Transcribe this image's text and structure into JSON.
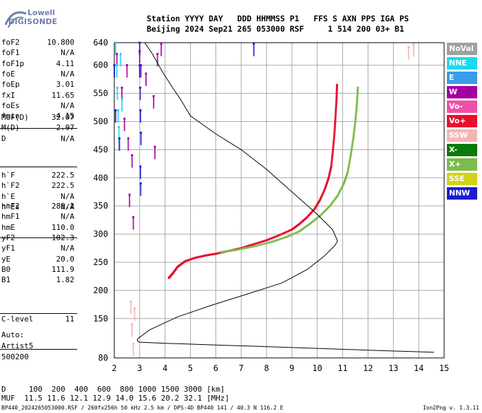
{
  "logo": {
    "line1": "Lowell",
    "line2": "DIGISONDE"
  },
  "header": {
    "line1": "Station YYYY DAY   DDD HHMMSS P1   FFS S AXN PPS IGA PS",
    "line2": "Beijing 2024 Sep21 265 053000 RSF     1 514 200 03+ B1"
  },
  "params_group1": [
    {
      "name": "foF2",
      "value": "10.800"
    },
    {
      "name": "foF1",
      "value": "N/A"
    },
    {
      "name": "foF1p",
      "value": "4.11"
    },
    {
      "name": "foE",
      "value": "N/A"
    },
    {
      "name": "foEp",
      "value": "3.01"
    },
    {
      "name": "fxI",
      "value": "11.65"
    },
    {
      "name": "foEs",
      "value": "N/A"
    },
    {
      "name": "fmin",
      "value": "4.15"
    }
  ],
  "params_group2": [
    {
      "name": "MUF(D)",
      "value": "32.07"
    },
    {
      "name": "M(D)",
      "value": "2.97"
    },
    {
      "name": "D",
      "value": "N/A"
    }
  ],
  "params_group3": [
    {
      "name": "h`F",
      "value": "222.5"
    },
    {
      "name": "h`F2",
      "value": "222.5"
    },
    {
      "name": "h`E",
      "value": "N/A"
    },
    {
      "name": "h`Es",
      "value": "N/A"
    }
  ],
  "params_group4": [
    {
      "name": "hmF2",
      "value": "288.2"
    },
    {
      "name": "hmF1",
      "value": "N/A"
    },
    {
      "name": "hmE",
      "value": "110.0"
    },
    {
      "name": "yF2",
      "value": "102.3"
    },
    {
      "name": "yF1",
      "value": "N/A"
    },
    {
      "name": "yE",
      "value": "20.0"
    },
    {
      "name": "B0",
      "value": "111.9"
    },
    {
      "name": "B1",
      "value": "1.82"
    }
  ],
  "params_group5": [
    {
      "name": "C-level",
      "value": "11"
    }
  ],
  "auto": {
    "line1": "Auto:",
    "line2": "Artist5",
    "line3": "500200"
  },
  "legend": [
    {
      "label": "NoVal",
      "color": "#a0a0a0"
    },
    {
      "label": "NNE",
      "color": "#19d9f0"
    },
    {
      "label": "E",
      "color": "#3a9be8"
    },
    {
      "label": "W",
      "color": "#a300a3"
    },
    {
      "label": "Vo-",
      "color": "#f04fa7"
    },
    {
      "label": "Vo+",
      "color": "#e8102e"
    },
    {
      "label": "SSW",
      "color": "#f5b4b4"
    },
    {
      "label": "X-",
      "color": "#0a7a0a"
    },
    {
      "label": "X+",
      "color": "#7dbb4c"
    },
    {
      "label": "SSE",
      "color": "#d2d21a"
    },
    {
      "label": "NNW",
      "color": "#1c1cd0"
    }
  ],
  "muf_table": {
    "d_line": "D     100  200  400  600  800 1000 1500 3000 [km]",
    "m_line": "MUF  11.5 11.6 12.1 12.9 14.0 15.6 20.2 32.1 [MHz]"
  },
  "footer": {
    "left": "BP440_2024265053000.RSF / 260fx256h 50 kHz 2.5 km / DPS-4D BP440 141 / 40.3 N 116.2 E",
    "right": "Ion2Png v. 1.3.11"
  },
  "chart_data": {
    "type": "scatter",
    "xlim": [
      2,
      15
    ],
    "ylim": [
      80,
      640
    ],
    "x_ticks": [
      2,
      3,
      4,
      5,
      6,
      7,
      8,
      9,
      10,
      11,
      12,
      13,
      14,
      15
    ],
    "y_ticks": [
      80,
      150,
      200,
      250,
      300,
      350,
      400,
      450,
      500,
      550,
      600,
      640
    ],
    "grid": true,
    "series": [
      {
        "name": "Vo+",
        "color": "#e8102e",
        "points": [
          [
            4.15,
            222
          ],
          [
            4.3,
            230
          ],
          [
            4.5,
            242
          ],
          [
            4.8,
            252
          ],
          [
            5.2,
            258
          ],
          [
            5.6,
            262
          ],
          [
            6.0,
            265
          ],
          [
            6.5,
            270
          ],
          [
            7.0,
            275
          ],
          [
            7.5,
            282
          ],
          [
            8.0,
            289
          ],
          [
            8.5,
            298
          ],
          [
            9.0,
            308
          ],
          [
            9.3,
            318
          ],
          [
            9.6,
            330
          ],
          [
            9.9,
            345
          ],
          [
            10.1,
            360
          ],
          [
            10.3,
            380
          ],
          [
            10.45,
            400
          ],
          [
            10.55,
            420
          ],
          [
            10.62,
            450
          ],
          [
            10.68,
            480
          ],
          [
            10.72,
            510
          ],
          [
            10.76,
            540
          ],
          [
            10.78,
            565
          ]
        ]
      },
      {
        "name": "X+",
        "color": "#7dbb4c",
        "points": [
          [
            6.2,
            268
          ],
          [
            6.8,
            272
          ],
          [
            7.5,
            278
          ],
          [
            8.2,
            286
          ],
          [
            8.8,
            295
          ],
          [
            9.3,
            305
          ],
          [
            9.7,
            318
          ],
          [
            10.1,
            332
          ],
          [
            10.5,
            350
          ],
          [
            10.8,
            368
          ],
          [
            11.05,
            390
          ],
          [
            11.2,
            410
          ],
          [
            11.32,
            440
          ],
          [
            11.42,
            470
          ],
          [
            11.5,
            500
          ],
          [
            11.56,
            530
          ],
          [
            11.6,
            560
          ]
        ]
      },
      {
        "name": "W",
        "color": "#a300a3",
        "points": [
          [
            2.1,
            620
          ],
          [
            2.3,
            560
          ],
          [
            2.4,
            505
          ],
          [
            2.55,
            470
          ],
          [
            2.7,
            440
          ],
          [
            2.6,
            370
          ],
          [
            2.75,
            330
          ],
          [
            2.5,
            600
          ],
          [
            3.0,
            625
          ],
          [
            3.05,
            600
          ],
          [
            3.25,
            585
          ],
          [
            3.55,
            545
          ],
          [
            3.6,
            455
          ],
          [
            3.7,
            620
          ],
          [
            3.85,
            638
          ]
        ]
      },
      {
        "name": "NNE",
        "color": "#19d9f0",
        "points": [
          [
            2.05,
            640
          ],
          [
            2.1,
            600
          ],
          [
            2.12,
            560
          ],
          [
            2.15,
            520
          ],
          [
            2.18,
            490
          ],
          [
            2.2,
            470
          ],
          [
            2.25,
            620
          ],
          [
            2.3,
            540
          ]
        ]
      },
      {
        "name": "NNW",
        "color": "#1c1cd0",
        "points": [
          [
            2.0,
            600
          ],
          [
            2.05,
            520
          ],
          [
            3.0,
            640
          ],
          [
            3.0,
            600
          ],
          [
            3.02,
            560
          ],
          [
            3.03,
            520
          ],
          [
            3.05,
            480
          ],
          [
            3.03,
            420
          ],
          [
            3.04,
            390
          ],
          [
            2.2,
            470
          ],
          [
            7.5,
            638
          ]
        ]
      },
      {
        "name": "SSW",
        "color": "#f5b4b4",
        "points": [
          [
            2.65,
            180
          ],
          [
            2.7,
            140
          ],
          [
            2.75,
            105
          ],
          [
            2.8,
            168
          ],
          [
            13.6,
            632
          ],
          [
            13.8,
            637
          ]
        ]
      }
    ],
    "profile": [
      [
        14.6,
        90
      ],
      [
        12.5,
        93
      ],
      [
        10.0,
        97
      ],
      [
        8.0,
        100
      ],
      [
        6.0,
        103
      ],
      [
        4.0,
        106
      ],
      [
        3.0,
        108
      ],
      [
        2.95,
        109
      ],
      [
        2.9,
        112
      ],
      [
        2.95,
        115
      ],
      [
        3.4,
        130
      ],
      [
        4.5,
        153
      ],
      [
        5.8,
        173
      ],
      [
        7.2,
        193
      ],
      [
        8.6,
        213
      ],
      [
        9.6,
        237
      ],
      [
        10.25,
        260
      ],
      [
        10.7,
        280
      ],
      [
        10.8,
        288
      ],
      [
        10.6,
        308
      ],
      [
        10.0,
        335
      ],
      [
        9.0,
        375
      ],
      [
        8.0,
        415
      ],
      [
        7.0,
        450
      ],
      [
        6.0,
        478
      ],
      [
        5.0,
        510
      ],
      [
        4.6,
        540
      ],
      [
        4.3,
        560
      ],
      [
        3.9,
        588
      ],
      [
        3.5,
        620
      ],
      [
        3.2,
        640
      ]
    ]
  }
}
